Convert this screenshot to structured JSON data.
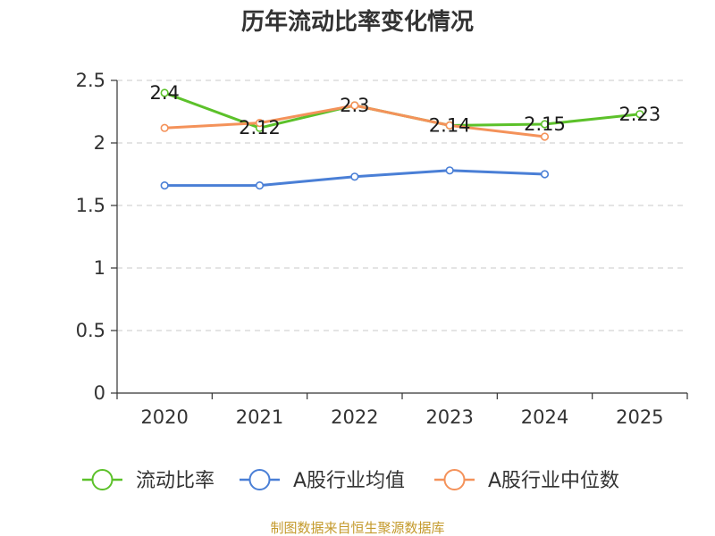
{
  "chart_data": {
    "type": "line",
    "title": "历年流动比率变化情况",
    "categories": [
      "2020",
      "2021",
      "2022",
      "2023",
      "2024",
      "2025"
    ],
    "ylim": [
      0,
      2.5
    ],
    "yticks": [
      "0",
      "0.5",
      "1",
      "1.5",
      "2",
      "2.5"
    ],
    "ytick_values": [
      0,
      0.5,
      1,
      1.5,
      2,
      2.5
    ],
    "grid": true,
    "legend_position": "bottom",
    "series": [
      {
        "name": "流动比率",
        "color": "#5cc12a",
        "values": [
          2.4,
          2.12,
          2.3,
          2.14,
          2.15,
          2.23
        ],
        "labels": [
          "2.4",
          "2.12",
          "2.3",
          "2.14",
          "2.15",
          "2.23"
        ]
      },
      {
        "name": "A股行业均值",
        "color": "#4a7fd6",
        "values": [
          1.66,
          1.66,
          1.73,
          1.78,
          1.75,
          null
        ]
      },
      {
        "name": "A股行业中位数",
        "color": "#f4925a",
        "values": [
          2.12,
          2.16,
          2.3,
          2.14,
          2.05,
          null
        ]
      }
    ]
  },
  "source": "制图数据来自恒生聚源数据库"
}
